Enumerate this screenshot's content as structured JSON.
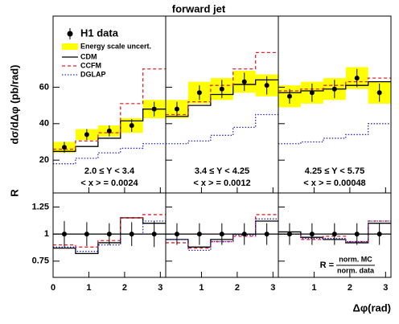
{
  "chart_data": {
    "type": "step",
    "title": "forward jet",
    "y_label": "dσ/dΔφ (pb/rad)",
    "ratio_y_label": "R",
    "x_label": "Δφ(rad)",
    "bins": [
      0,
      0.628,
      1.257,
      1.885,
      2.513,
      3.142
    ],
    "xlim": [
      0,
      3.15
    ],
    "xticks": [
      0,
      1,
      2,
      3
    ],
    "ylim": [
      2,
      99
    ],
    "yticks": [
      20,
      40,
      60
    ],
    "ratio_ylim": [
      0.6,
      1.38
    ],
    "ratio_yticks": [
      0.75,
      1,
      1.25
    ],
    "ratio_reference": 1,
    "data_name": "H1 data",
    "band_name": "Energy scale uncert.",
    "band_color": "#ffff00",
    "models": [
      {
        "name": "CDM",
        "color": "#000000",
        "dash": "solid"
      },
      {
        "name": "CCFM",
        "color": "#e8202a",
        "dash": "dashed"
      },
      {
        "name": "DGLAP",
        "color": "#2a2ac8",
        "dash": "dotted"
      }
    ],
    "ratio_formula": {
      "lhs": "R =",
      "numerator": "norm. MC",
      "denominator": "norm. data"
    },
    "panels": [
      {
        "y_range": "2.0 ≤ Y < 3.4",
        "mean_x": "< x > = 0.0024",
        "values": [
          27,
          34,
          36,
          39,
          48
        ],
        "errors": [
          3,
          3,
          3,
          3.5,
          4
        ],
        "band": [
          3,
          3,
          3,
          4,
          5
        ],
        "model_values": [
          [
            24.8,
            27.5,
            32,
            41.5,
            48
          ],
          [
            26,
            30.5,
            35,
            51,
            70
          ],
          [
            18,
            21,
            24,
            26.5,
            29
          ]
        ],
        "ratio_values": [
          1,
          1,
          1,
          1,
          1
        ],
        "ratio_errors": [
          0.12,
          0.11,
          0.1,
          0.11,
          0.12
        ],
        "ratio_model_values": [
          [
            0.87,
            0.82,
            0.92,
            1.15,
            1.1
          ],
          [
            0.9,
            0.88,
            0.94,
            1.15,
            1.18
          ],
          [
            0.88,
            0.84,
            0.9,
            1.0,
            1.12
          ]
        ]
      },
      {
        "y_range": "3.4 ≤ Y < 4.25",
        "mean_x": "< x > = 0.0012",
        "values": [
          48,
          57,
          59,
          63,
          61
        ],
        "errors": [
          4,
          4,
          5,
          5,
          5
        ],
        "band": [
          5,
          6,
          6,
          6,
          6
        ],
        "model_values": [
          [
            44,
            50,
            56,
            61.5,
            64
          ],
          [
            45,
            52,
            61,
            70,
            79
          ],
          [
            29,
            30.5,
            33.6,
            38,
            45
          ]
        ],
        "ratio_values": [
          1,
          1,
          1,
          1,
          1
        ],
        "ratio_errors": [
          0.1,
          0.1,
          0.1,
          0.1,
          0.1
        ],
        "ratio_model_values": [
          [
            0.95,
            0.88,
            0.95,
            1.0,
            1.12
          ],
          [
            0.92,
            0.87,
            0.93,
            0.98,
            1.18
          ],
          [
            0.95,
            0.85,
            0.93,
            0.99,
            1.14
          ]
        ]
      },
      {
        "y_range": "4.25 ≤ Y < 5.75",
        "mean_x": "< x > = 0.00048",
        "values": [
          55,
          57,
          59,
          65,
          57
        ],
        "errors": [
          4,
          5,
          5,
          5,
          5
        ],
        "band": [
          6,
          6,
          6,
          6,
          6
        ],
        "model_values": [
          [
            57,
            58,
            59,
            61,
            63
          ],
          [
            58,
            59,
            61,
            63,
            65
          ],
          [
            29,
            30,
            32,
            34,
            40
          ]
        ],
        "ratio_values": [
          1,
          1,
          1,
          1,
          1
        ],
        "ratio_errors": [
          0.1,
          0.1,
          0.1,
          0.1,
          0.1
        ],
        "ratio_model_values": [
          [
            1.02,
            0.97,
            0.95,
            0.92,
            1.1
          ],
          [
            1.0,
            0.95,
            0.98,
            0.93,
            1.12
          ],
          [
            1.0,
            0.96,
            0.96,
            0.93,
            1.12
          ]
        ]
      }
    ]
  }
}
